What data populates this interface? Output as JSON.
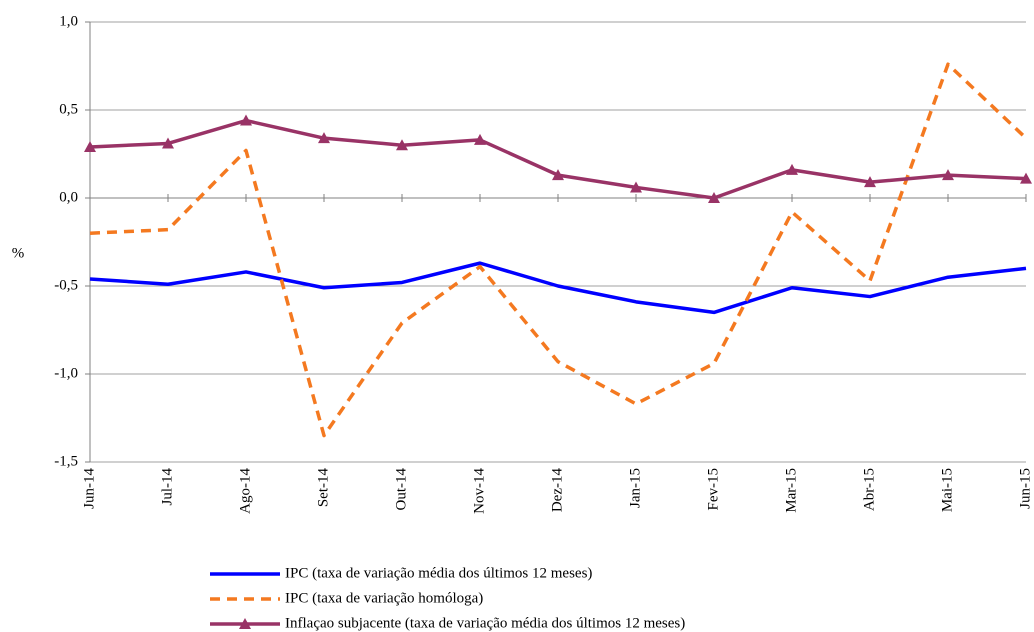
{
  "chart_data": {
    "type": "line",
    "y_label": "%",
    "categories": [
      "Jun-14",
      "Jul-14",
      "Ago-14",
      "Set-14",
      "Out-14",
      "Nov-14",
      "Dez-14",
      "Jan-15",
      "Fev-15",
      "Mar-15",
      "Abr-15",
      "Mai-15",
      "Jun-15"
    ],
    "series": [
      {
        "name": "IPC (taxa de variação média dos últimos 12 meses)",
        "color": "#0000ff",
        "dash": false,
        "marker": "none",
        "values": [
          -0.46,
          -0.49,
          -0.42,
          -0.51,
          -0.48,
          -0.37,
          -0.5,
          -0.59,
          -0.65,
          -0.51,
          -0.56,
          -0.45,
          -0.4
        ]
      },
      {
        "name": "IPC (taxa de variação homóloga)",
        "color": "#f47920",
        "dash": true,
        "marker": "none",
        "values": [
          -0.2,
          -0.18,
          0.27,
          -1.35,
          -0.71,
          -0.39,
          -0.93,
          -1.17,
          -0.94,
          -0.08,
          -0.47,
          0.76,
          0.34
        ]
      },
      {
        "name": "Inflaçao subjacente (taxa de variação média dos últimos 12 meses)",
        "color": "#993366",
        "dash": false,
        "marker": "triangle",
        "values": [
          0.29,
          0.31,
          0.44,
          0.34,
          0.3,
          0.33,
          0.13,
          0.06,
          0.0,
          0.16,
          0.09,
          0.13,
          0.11
        ]
      }
    ],
    "ylim": [
      -1.5,
      1.0
    ],
    "yticks": [
      {
        "value": -1.5,
        "label": "-1,5"
      },
      {
        "value": -1.0,
        "label": "-1,0"
      },
      {
        "value": -0.5,
        "label": "-0,5"
      },
      {
        "value": 0.0,
        "label": "0,0"
      },
      {
        "value": 0.5,
        "label": "0,5"
      },
      {
        "value": 1.0,
        "label": "1,0"
      }
    ],
    "grid": true,
    "legend": "bottom"
  }
}
